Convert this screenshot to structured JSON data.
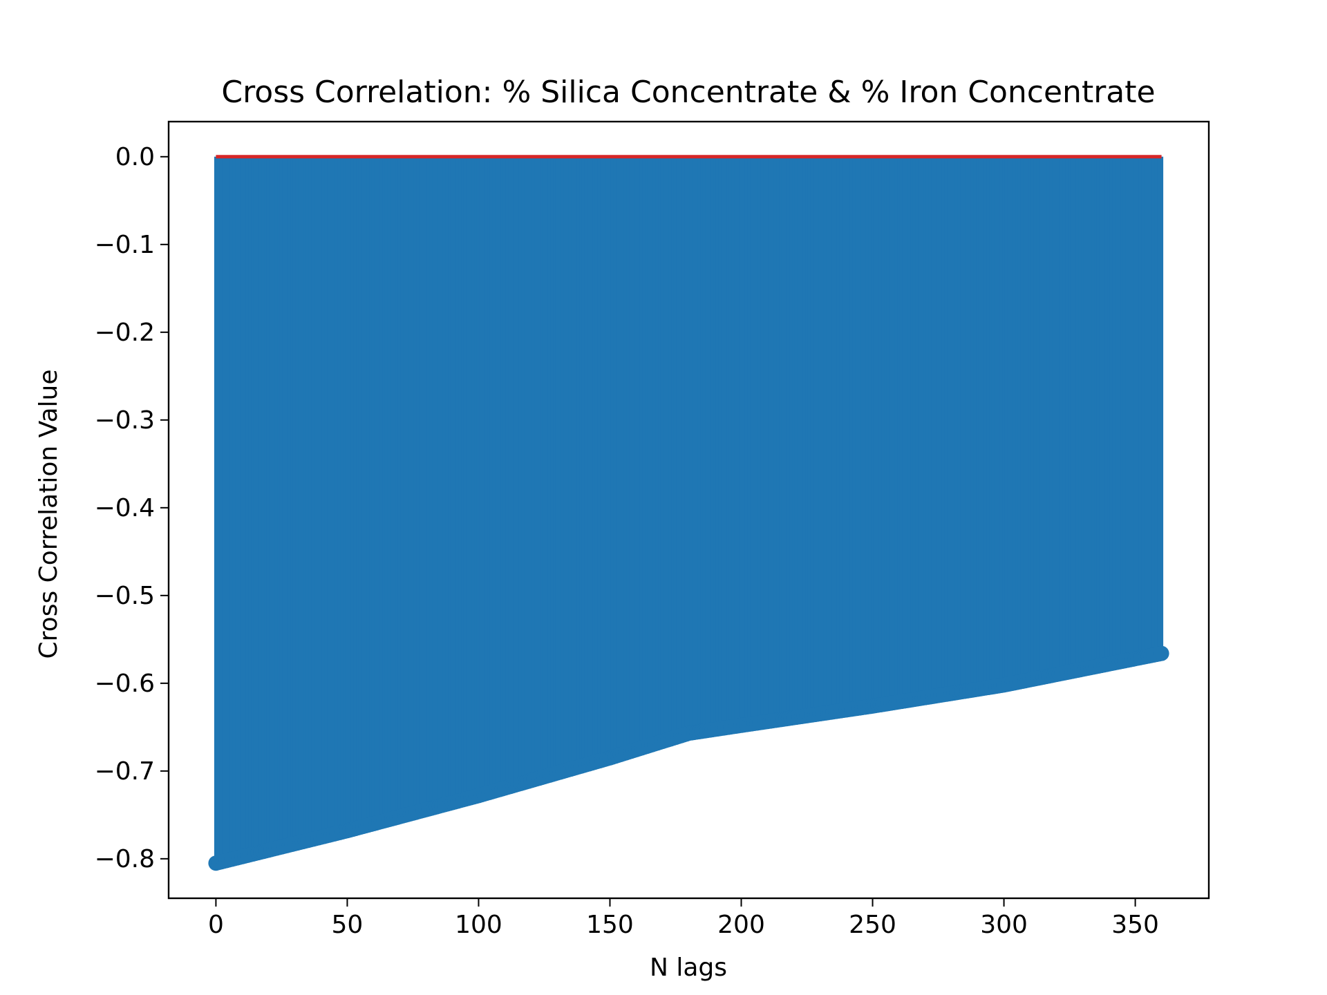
{
  "chart_data": {
    "type": "stem",
    "title": "Cross Correlation: % Silica Concentrate & % Iron Concentrate",
    "xlabel": "N lags",
    "ylabel": "Cross Correlation Value",
    "xlim": [
      -18,
      378
    ],
    "ylim": [
      -0.845,
      0.04
    ],
    "x_ticks": [
      0,
      50,
      100,
      150,
      200,
      250,
      300,
      350
    ],
    "x_tick_labels": [
      "0",
      "50",
      "100",
      "150",
      "200",
      "250",
      "300",
      "350"
    ],
    "y_ticks": [
      0.0,
      -0.1,
      -0.2,
      -0.3,
      -0.4,
      -0.5,
      -0.6,
      -0.7,
      -0.8
    ],
    "y_tick_labels": [
      "0.0",
      "−0.1",
      "−0.2",
      "−0.3",
      "−0.4",
      "−0.5",
      "−0.6",
      "−0.7",
      "−0.8"
    ],
    "grid": false,
    "baseline": 0,
    "lag_range": [
      0,
      360
    ],
    "value_profile": {
      "lags": [
        0,
        50,
        100,
        150,
        180,
        200,
        250,
        300,
        360
      ],
      "values": [
        -0.805,
        -0.768,
        -0.728,
        -0.685,
        -0.657,
        -0.648,
        -0.626,
        -0.602,
        -0.566
      ]
    },
    "colors": {
      "stem": "#1f77b4",
      "marker": "#1f77b4",
      "baseline": "#d62728",
      "axes": "#000000",
      "background": "#ffffff"
    }
  }
}
